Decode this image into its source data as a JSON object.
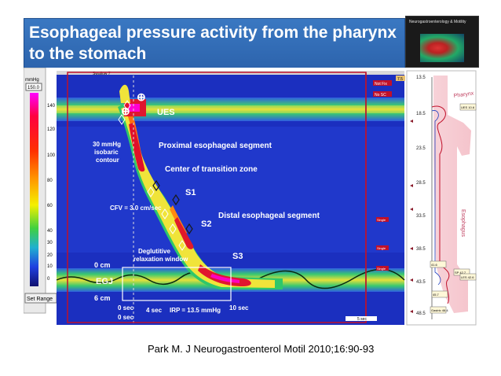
{
  "slide_title": "Esophageal pressure activity from the pharynx to the stomach",
  "journal_cover_title": "Neurogastroenterology & Motility",
  "colorbar": {
    "unit": "mmHg",
    "top_value": "150.0",
    "ticks": [
      "140",
      "120",
      "100",
      "80",
      "60",
      "40",
      "30",
      "20",
      "10",
      "0"
    ],
    "set_range_button": "Set Range"
  },
  "topography": {
    "window_title": "Swallow 7",
    "status_tags": [
      "Not Fix",
      "No SC"
    ],
    "side_labels": [
      "Single",
      "Single",
      "Single",
      "Swallow"
    ],
    "right_tag": "7.5",
    "scale_label": "5 sec",
    "annotations": {
      "ues": "UES",
      "proximal": "Proximal esophageal segment",
      "isobaric": "30 mmHg isobaric contour",
      "transition": "Center of transition zone",
      "s1": "S1",
      "cfv": "CFV = 3.0 cm/sec",
      "distal": "Distal esophageal segment",
      "s2": "S2",
      "deglutitive": "Deglutitive relaxation window",
      "s3": "S3",
      "zero_cm": "0 cm",
      "egj": "EGJ",
      "six_cm": "6 cm",
      "zero_sec_a": "0 sec",
      "four_sec": "4 sec",
      "irp": "IRP = 13.5 mmHg",
      "ten_sec": "10 sec",
      "zero_sec_b": "0 sec"
    }
  },
  "sensor_panel": {
    "positions": [
      "13.5",
      "18.5",
      "23.5",
      "28.5",
      "33.5",
      "38.5",
      "43.5",
      "48.5"
    ],
    "pharynx_label": "Pharynx",
    "esophagus_label": "Esophagus",
    "boxes": [
      "UES 10.6",
      "41.6",
      "SP 42.7",
      "LES 42.6",
      "45.7",
      "Gastric 46.4"
    ]
  },
  "citation": "Park M. J Neurogastroenterol Motil 2010;16:90-93",
  "colors": {
    "title_bg": "#2f68b0",
    "plot_bg": "#1b2fbf",
    "annotation_text": "#ffffff",
    "frame_red": "#c0102a"
  }
}
